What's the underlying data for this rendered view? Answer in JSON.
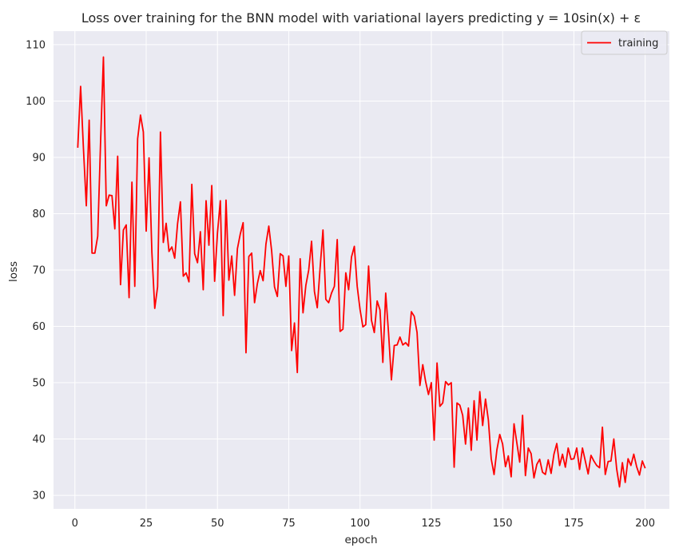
{
  "chart_data": {
    "type": "line",
    "title": "Loss over training for the BNN model with variational layers predicting y = 10sin(x) + ε",
    "xlabel": "epoch",
    "ylabel": "loss",
    "xlim": [
      -7.5,
      208.5
    ],
    "ylim": [
      27.6,
      112.4
    ],
    "xticks": [
      0,
      25,
      50,
      75,
      100,
      125,
      150,
      175,
      200
    ],
    "yticks": [
      30,
      40,
      50,
      60,
      70,
      80,
      90,
      100,
      110
    ],
    "grid": true,
    "legend_position": "top-right",
    "background": "#eaeaf2",
    "series": [
      {
        "name": "training",
        "color": "#ff0000",
        "x_start": 1,
        "x_step": 1,
        "values": [
          91.7,
          102.6,
          91.5,
          81.4,
          96.6,
          73.0,
          73.0,
          76.0,
          92.7,
          107.8,
          81.4,
          83.3,
          83.2,
          77.3,
          90.2,
          67.4,
          77.1,
          78.0,
          65.1,
          85.6,
          67.1,
          93.3,
          97.5,
          94.5,
          76.9,
          89.9,
          73.1,
          63.2,
          67.0,
          94.5,
          74.9,
          78.3,
          73.3,
          74.1,
          72.1,
          78.2,
          82.1,
          68.9,
          69.5,
          67.9,
          85.2,
          72.9,
          71.3,
          76.8,
          66.5,
          82.3,
          74.4,
          85.0,
          68.0,
          76.6,
          82.3,
          61.9,
          82.4,
          68.2,
          72.5,
          65.5,
          73.8,
          76.4,
          78.4,
          55.3,
          72.4,
          73.0,
          64.2,
          67.6,
          69.9,
          68.1,
          74.6,
          77.8,
          73.4,
          67.0,
          65.3,
          72.9,
          72.5,
          67.1,
          72.5,
          55.7,
          60.6,
          51.8,
          72.0,
          62.4,
          67.3,
          70.0,
          75.1,
          66.2,
          63.3,
          70.4,
          77.1,
          64.8,
          64.2,
          65.9,
          67.1,
          75.4,
          59.1,
          59.5,
          69.5,
          66.5,
          72.3,
          74.2,
          67.1,
          63.0,
          59.9,
          60.3,
          70.7,
          61.1,
          58.9,
          64.5,
          62.9,
          53.6,
          65.9,
          58.8,
          50.5,
          56.6,
          56.7,
          58.1,
          56.7,
          57.1,
          56.5,
          62.6,
          61.8,
          58.9,
          49.5,
          53.2,
          50.2,
          47.9,
          50.0,
          39.8,
          53.5,
          45.8,
          46.4,
          50.2,
          49.6,
          50.0,
          35.0,
          46.4,
          46.0,
          44.2,
          39.1,
          45.5,
          38.0,
          46.8,
          39.8,
          48.4,
          42.4,
          47.1,
          43.4,
          36.5,
          33.7,
          38.1,
          40.8,
          39.1,
          35.1,
          37.0,
          33.3,
          42.7,
          39.3,
          35.9,
          44.2,
          33.5,
          38.4,
          37.4,
          33.1,
          35.5,
          36.4,
          34.1,
          33.7,
          36.3,
          33.9,
          37.3,
          39.2,
          35.3,
          37.3,
          35.0,
          38.4,
          36.4,
          36.5,
          38.4,
          34.6,
          38.4,
          36.1,
          33.8,
          37.1,
          36.1,
          35.3,
          34.9,
          42.1,
          33.7,
          36.0,
          36.1,
          40.0,
          34.7,
          31.5,
          35.8,
          32.3,
          36.5,
          35.3,
          37.3,
          35.1,
          33.6,
          36.1,
          34.8
        ]
      }
    ]
  }
}
